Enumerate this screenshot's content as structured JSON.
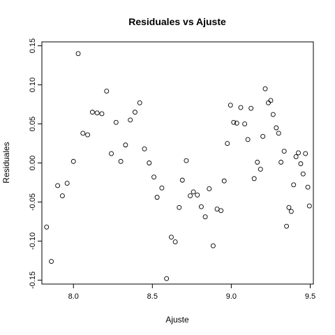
{
  "chart_data": {
    "type": "scatter",
    "title": "Residuales vs Ajuste",
    "xlabel": "Ajuste",
    "ylabel": "Residuales",
    "xlim": [
      7.8,
      9.52
    ],
    "ylim": [
      -0.155,
      0.155
    ],
    "x_ticks": [
      "8.0",
      "8.5",
      "9.0",
      "9.5"
    ],
    "y_ticks": [
      "-0.15",
      "-0.10",
      "-0.05",
      "0.00",
      "0.05",
      "0.10",
      "0.15"
    ],
    "grid": false,
    "legend": "none",
    "marker": "open-circle",
    "point_color": "#000000",
    "points": [
      [
        7.83,
        -0.082
      ],
      [
        7.86,
        -0.126
      ],
      [
        7.9,
        -0.029
      ],
      [
        7.93,
        -0.042
      ],
      [
        7.96,
        -0.026
      ],
      [
        8.0,
        0.002
      ],
      [
        8.03,
        0.14
      ],
      [
        8.06,
        0.038
      ],
      [
        8.09,
        0.036
      ],
      [
        8.12,
        0.065
      ],
      [
        8.15,
        0.064
      ],
      [
        8.18,
        0.063
      ],
      [
        8.21,
        0.092
      ],
      [
        8.24,
        0.012
      ],
      [
        8.27,
        0.052
      ],
      [
        8.3,
        0.002
      ],
      [
        8.33,
        0.023
      ],
      [
        8.36,
        0.055
      ],
      [
        8.39,
        0.065
      ],
      [
        8.42,
        0.077
      ],
      [
        8.45,
        0.018
      ],
      [
        8.48,
        0.0
      ],
      [
        8.51,
        -0.018
      ],
      [
        8.53,
        -0.044
      ],
      [
        8.56,
        -0.032
      ],
      [
        8.59,
        -0.148
      ],
      [
        8.62,
        -0.095
      ],
      [
        8.645,
        -0.101
      ],
      [
        8.67,
        -0.057
      ],
      [
        8.69,
        -0.022
      ],
      [
        8.715,
        0.003
      ],
      [
        8.74,
        -0.042
      ],
      [
        8.76,
        -0.037
      ],
      [
        8.785,
        -0.041
      ],
      [
        8.81,
        -0.056
      ],
      [
        8.835,
        -0.069
      ],
      [
        8.86,
        -0.033
      ],
      [
        8.885,
        -0.106
      ],
      [
        8.91,
        -0.059
      ],
      [
        8.935,
        -0.061
      ],
      [
        8.955,
        -0.023
      ],
      [
        8.975,
        0.025
      ],
      [
        8.995,
        0.074
      ],
      [
        9.015,
        0.052
      ],
      [
        9.035,
        0.051
      ],
      [
        9.06,
        0.071
      ],
      [
        9.085,
        0.05
      ],
      [
        9.105,
        0.03
      ],
      [
        9.125,
        0.07
      ],
      [
        9.145,
        -0.02
      ],
      [
        9.165,
        0.001
      ],
      [
        9.185,
        -0.008
      ],
      [
        9.2,
        0.034
      ],
      [
        9.215,
        0.095
      ],
      [
        9.235,
        0.077
      ],
      [
        9.25,
        0.08
      ],
      [
        9.265,
        0.062
      ],
      [
        9.285,
        0.045
      ],
      [
        9.3,
        0.038
      ],
      [
        9.315,
        0.001
      ],
      [
        9.335,
        0.015
      ],
      [
        9.35,
        -0.081
      ],
      [
        9.365,
        -0.057
      ],
      [
        9.38,
        -0.062
      ],
      [
        9.395,
        -0.028
      ],
      [
        9.41,
        0.008
      ],
      [
        9.425,
        0.013
      ],
      [
        9.44,
        -0.001
      ],
      [
        9.455,
        -0.014
      ],
      [
        9.47,
        0.012
      ],
      [
        9.485,
        -0.031
      ],
      [
        9.495,
        -0.055
      ]
    ]
  }
}
